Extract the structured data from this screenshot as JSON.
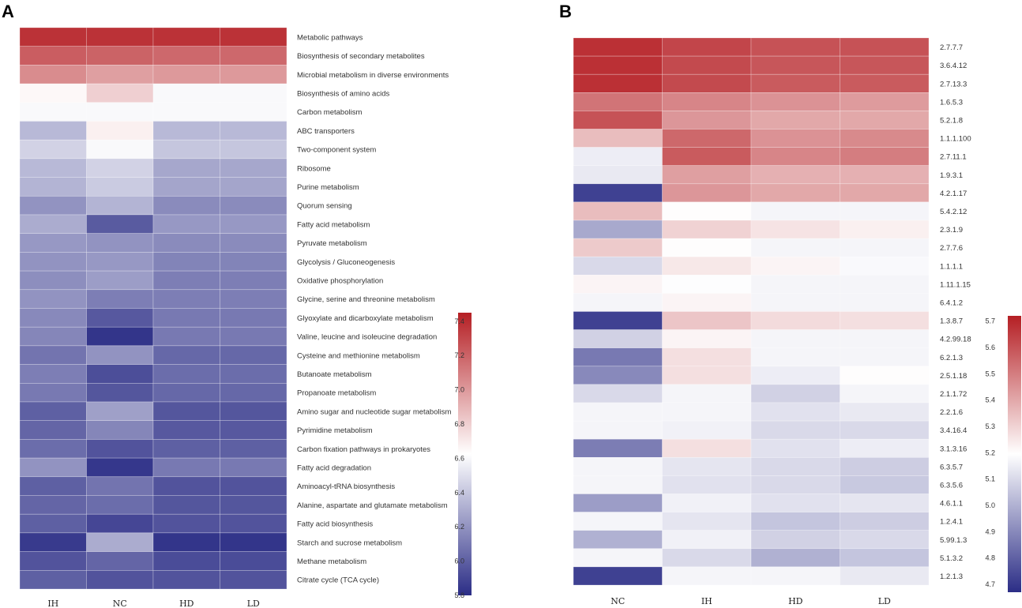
{
  "chart_data": [
    {
      "type": "heatmap",
      "panel": "A",
      "columns": [
        "IH",
        "NC",
        "HD",
        "LD"
      ],
      "rows": [
        "Metabolic pathways",
        "Biosynthesis of secondary metabolites",
        "Microbial metabolism in diverse environments",
        "Biosynthesis of amino acids",
        "Carbon metabolism",
        "ABC transporters",
        "Two-component system",
        "Ribosome",
        "Purine metabolism",
        "Quorum sensing",
        "Fatty acid metabolism",
        "Pyruvate metabolism",
        "Glycolysis / Gluconeogenesis",
        "Oxidative phosphorylation",
        "Glycine, serine and threonine metabolism",
        "Glyoxylate and dicarboxylate metabolism",
        "Valine, leucine and isoleucine degradation",
        "Cysteine and methionine metabolism",
        "Butanoate metabolism",
        "Propanoate metabolism",
        "Amino sugar and nucleotide sugar metabolism",
        "Pyrimidine metabolism",
        "Carbon fixation pathways in prokaryotes",
        "Fatty acid degradation",
        "Aminoacyl-tRNA biosynthesis",
        "Alanine, aspartate and glutamate metabolism",
        "Fatty acid biosynthesis",
        "Starch and sucrose metabolism",
        "Methane metabolism",
        "Citrate cycle (TCA cycle)"
      ],
      "values": [
        [
          7.38,
          7.38,
          7.38,
          7.38
        ],
        [
          7.22,
          7.2,
          7.18,
          7.18
        ],
        [
          7.05,
          6.98,
          7.0,
          7.0
        ],
        [
          6.65,
          6.8,
          6.6,
          6.6
        ],
        [
          6.6,
          6.6,
          6.6,
          6.6
        ],
        [
          6.35,
          6.68,
          6.35,
          6.35
        ],
        [
          6.45,
          6.6,
          6.4,
          6.4
        ],
        [
          6.35,
          6.45,
          6.28,
          6.28
        ],
        [
          6.33,
          6.42,
          6.27,
          6.27
        ],
        [
          6.2,
          6.33,
          6.17,
          6.17
        ],
        [
          6.3,
          5.98,
          6.22,
          6.22
        ],
        [
          6.22,
          6.2,
          6.17,
          6.17
        ],
        [
          6.2,
          6.22,
          6.14,
          6.14
        ],
        [
          6.18,
          6.24,
          6.12,
          6.12
        ],
        [
          6.2,
          6.12,
          6.12,
          6.12
        ],
        [
          6.16,
          5.97,
          6.1,
          6.1
        ],
        [
          6.15,
          5.83,
          6.1,
          6.1
        ],
        [
          6.08,
          6.2,
          6.03,
          6.03
        ],
        [
          6.12,
          5.93,
          6.05,
          6.05
        ],
        [
          6.1,
          5.96,
          6.03,
          6.03
        ],
        [
          6.0,
          6.25,
          5.96,
          5.96
        ],
        [
          6.02,
          6.15,
          5.97,
          5.97
        ],
        [
          6.05,
          5.95,
          6.0,
          6.0
        ],
        [
          6.2,
          5.84,
          6.1,
          6.1
        ],
        [
          6.0,
          6.08,
          5.95,
          5.95
        ],
        [
          6.02,
          6.05,
          5.96,
          5.96
        ],
        [
          6.0,
          5.9,
          5.95,
          5.95
        ],
        [
          5.85,
          6.3,
          5.83,
          5.83
        ],
        [
          5.95,
          6.02,
          5.92,
          5.92
        ],
        [
          6.0,
          5.95,
          5.95,
          5.95
        ]
      ],
      "colorbar": {
        "min": 5.8,
        "max": 7.45,
        "ticks": [
          7.4,
          7.2,
          7.0,
          6.8,
          6.6,
          6.4,
          6.2,
          6.0,
          5.8
        ],
        "colors": [
          "#2b2d86",
          "#ffffff",
          "#b51f24"
        ]
      }
    },
    {
      "type": "heatmap",
      "panel": "B",
      "columns": [
        "NC",
        "IH",
        "HD",
        "LD"
      ],
      "rows": [
        "2.7.7.7",
        "3.6.4.12",
        "2.7.13.3",
        "1.6.5.3",
        "5.2.1.8",
        "1.1.1.100",
        "2.7.11.1",
        "1.9.3.1",
        "4.2.1.17",
        "5.4.2.12",
        "2.3.1.9",
        "2.7.7.6",
        "1.1.1.1",
        "1.11.1.15",
        "6.4.1.2",
        "1.3.8.7",
        "4.2.99.18",
        "6.2.1.3",
        "2.5.1.18",
        "2.1.1.72",
        "2.2.1.6",
        "3.4.16.4",
        "3.1.3.16",
        "6.3.5.7",
        "6.3.5.6",
        "4.6.1.1",
        "1.2.4.1",
        "5.99.1.3",
        "5.1.3.2",
        "1.2.1.3"
      ],
      "values": [
        [
          5.68,
          5.63,
          5.6,
          5.6
        ],
        [
          5.68,
          5.62,
          5.59,
          5.59
        ],
        [
          5.68,
          5.62,
          5.58,
          5.58
        ],
        [
          5.52,
          5.48,
          5.45,
          5.43
        ],
        [
          5.6,
          5.44,
          5.4,
          5.4
        ],
        [
          5.35,
          5.55,
          5.45,
          5.47
        ],
        [
          5.15,
          5.58,
          5.48,
          5.5
        ],
        [
          5.14,
          5.42,
          5.38,
          5.38
        ],
        [
          4.72,
          5.44,
          5.4,
          5.4
        ],
        [
          5.35,
          5.2,
          5.17,
          5.17
        ],
        [
          4.98,
          5.3,
          5.26,
          5.23
        ],
        [
          5.32,
          5.2,
          5.17,
          5.17
        ],
        [
          5.1,
          5.25,
          5.22,
          5.18
        ],
        [
          5.22,
          5.19,
          5.17,
          5.17
        ],
        [
          5.17,
          5.22,
          5.17,
          5.17
        ],
        [
          4.72,
          5.33,
          5.28,
          5.27
        ],
        [
          5.08,
          5.22,
          5.17,
          5.17
        ],
        [
          4.86,
          5.27,
          5.17,
          5.17
        ],
        [
          4.9,
          5.27,
          5.15,
          5.2
        ],
        [
          5.1,
          5.17,
          5.08,
          5.17
        ],
        [
          5.17,
          5.17,
          5.12,
          5.14
        ],
        [
          5.17,
          5.16,
          5.1,
          5.1
        ],
        [
          4.87,
          5.27,
          5.12,
          5.15
        ],
        [
          5.17,
          5.13,
          5.1,
          5.07
        ],
        [
          5.17,
          5.12,
          5.1,
          5.06
        ],
        [
          4.95,
          5.16,
          5.12,
          5.13
        ],
        [
          5.17,
          5.13,
          5.05,
          5.07
        ],
        [
          5.0,
          5.16,
          5.08,
          5.1
        ],
        [
          5.17,
          5.1,
          5.0,
          5.05
        ],
        [
          4.72,
          5.17,
          5.17,
          5.14
        ]
      ],
      "colorbar": {
        "min": 4.67,
        "max": 5.72,
        "ticks": [
          5.7,
          5.6,
          5.5,
          5.4,
          5.3,
          5.2,
          5.1,
          5.0,
          4.9,
          4.8,
          4.7
        ],
        "colors": [
          "#2b2d86",
          "#ffffff",
          "#b51f24"
        ]
      }
    }
  ]
}
